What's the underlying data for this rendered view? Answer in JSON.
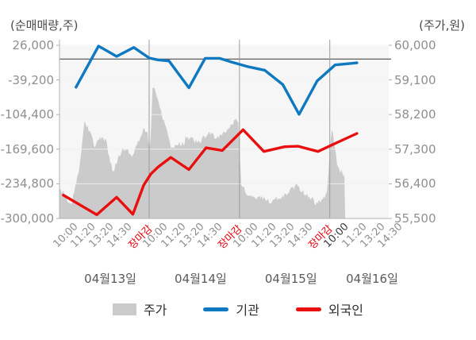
{
  "chart_data": {
    "type": "combo-area-line",
    "title": "",
    "grid": true,
    "left_axis": {
      "title": "(순매매량,주)",
      "ticks": [
        "26,000",
        "-39,200",
        "-104,400",
        "-169,600",
        "-234,800",
        "-300,000"
      ],
      "max": 26000,
      "min": -300000
    },
    "right_axis": {
      "title": "(주가,원)",
      "ticks": [
        "60,000",
        "59,100",
        "58,200",
        "57,300",
        "56,400",
        "55,500"
      ],
      "max": 60000,
      "min": 55500
    },
    "x_axis": {
      "close_label": "장마감",
      "close_label_color": "#e8000d",
      "latest_tick": "10:00",
      "days": [
        {
          "label": "04월13일",
          "ticks": [
            "10:00",
            "11:20",
            "13:20",
            "14:30",
            "장마감"
          ]
        },
        {
          "label": "04월14일",
          "ticks": [
            "10:00",
            "11:20",
            "13:20",
            "14:30",
            "장마감"
          ]
        },
        {
          "label": "04월15일",
          "ticks": [
            "10:00",
            "11:20",
            "13:20",
            "14:30",
            "장마감"
          ]
        },
        {
          "label": "04월16일",
          "ticks": [
            "10:00",
            "11:20",
            "13:20",
            "14:30"
          ]
        }
      ]
    },
    "series": [
      {
        "name": "주가",
        "kind": "area",
        "axis": "right",
        "color": "#cbcbcb",
        "points": [
          [
            -0.45,
            56290
          ],
          [
            0.2,
            55880
          ],
          [
            0.65,
            56900
          ],
          [
            0.93,
            58100
          ],
          [
            1.3,
            57650
          ],
          [
            1.53,
            57390
          ],
          [
            1.75,
            57630
          ],
          [
            2.1,
            57600
          ],
          [
            2.35,
            56950
          ],
          [
            2.55,
            56770
          ],
          [
            2.75,
            57080
          ],
          [
            3.05,
            57320
          ],
          [
            3.35,
            57290
          ],
          [
            3.55,
            57120
          ],
          [
            4.2,
            57840
          ],
          [
            4.4,
            57770
          ],
          [
            4.55,
            57200
          ],
          [
            4.7,
            59080
          ],
          [
            5.1,
            58400
          ],
          [
            5.6,
            57560
          ],
          [
            5.75,
            57320
          ],
          [
            6.0,
            57500
          ],
          [
            6.4,
            57450
          ],
          [
            6.56,
            57670
          ],
          [
            7.2,
            57500
          ],
          [
            7.88,
            57740
          ],
          [
            8.3,
            57600
          ],
          [
            8.98,
            57940
          ],
          [
            9.42,
            58140
          ],
          [
            9.6,
            56430
          ],
          [
            9.8,
            56260
          ],
          [
            10.3,
            56020
          ],
          [
            10.7,
            56120
          ],
          [
            11.2,
            55950
          ],
          [
            12.05,
            56150
          ],
          [
            12.7,
            56390
          ],
          [
            13.05,
            56220
          ],
          [
            13.6,
            56020
          ],
          [
            13.75,
            55880
          ],
          [
            14.0,
            55950
          ],
          [
            14.35,
            56200
          ],
          [
            14.55,
            57660
          ],
          [
            14.62,
            57850
          ],
          [
            14.9,
            56950
          ],
          [
            15.1,
            56740
          ],
          [
            15.35,
            56640
          ]
        ]
      },
      {
        "name": "기관",
        "kind": "line",
        "axis": "left",
        "color": "#0e79c0",
        "points": [
          [
            0.45,
            -53000
          ],
          [
            1.7,
            24500
          ],
          [
            2.7,
            5000
          ],
          [
            3.65,
            22000
          ],
          [
            4.5,
            2000
          ],
          [
            5.0,
            -1500
          ],
          [
            5.6,
            -3500
          ],
          [
            6.7,
            -54000
          ],
          [
            7.6,
            1500
          ],
          [
            8.4,
            1500
          ],
          [
            9.1,
            -6000
          ],
          [
            10.0,
            -14500
          ],
          [
            10.9,
            -21000
          ],
          [
            11.9,
            -48000
          ],
          [
            12.8,
            -104000
          ],
          [
            13.8,
            -41000
          ],
          [
            14.8,
            -11000
          ],
          [
            15.4,
            -9000
          ],
          [
            16.0,
            -7000
          ]
        ]
      },
      {
        "name": "외국인",
        "kind": "line",
        "axis": "left",
        "color": "#e90f0f",
        "points": [
          [
            -0.25,
            -256000
          ],
          [
            1.6,
            -293000
          ],
          [
            2.7,
            -260000
          ],
          [
            3.6,
            -292000
          ],
          [
            4.2,
            -237000
          ],
          [
            4.6,
            -216000
          ],
          [
            5.0,
            -203000
          ],
          [
            5.7,
            -185000
          ],
          [
            6.7,
            -208000
          ],
          [
            7.65,
            -167000
          ],
          [
            8.55,
            -172000
          ],
          [
            9.7,
            -133000
          ],
          [
            10.85,
            -174000
          ],
          [
            12.0,
            -165000
          ],
          [
            12.75,
            -164000
          ],
          [
            13.85,
            -174000
          ],
          [
            14.85,
            -158000
          ],
          [
            16.0,
            -140000
          ]
        ]
      }
    ],
    "legend": {
      "position": "bottom",
      "items": [
        {
          "label": "주가",
          "color": "#cbcbcb",
          "swatch": "rect"
        },
        {
          "label": "기관",
          "color": "#0e79c0",
          "swatch": "line"
        },
        {
          "label": "외국인",
          "color": "#e90f0f",
          "swatch": "line"
        }
      ]
    },
    "colors": {
      "plot_background": "#f6f6f6",
      "gridline": "#e2e2e2",
      "zero_line": "#5f5f5f",
      "day_separator": "#9b9b9b",
      "axis_line": "#b0b0b0",
      "tick_text": "#8f8f8f",
      "close_tick_text": "#e8000d",
      "latest_tick_text": "#3a3a3a"
    }
  }
}
